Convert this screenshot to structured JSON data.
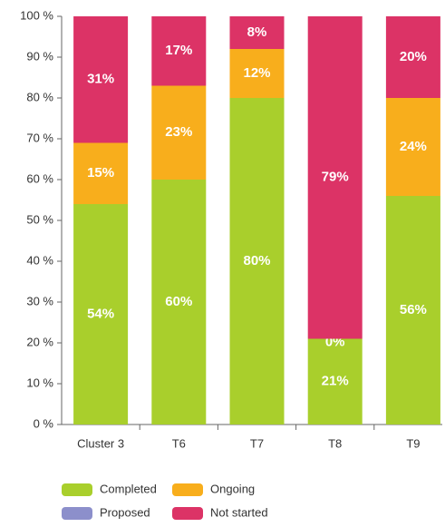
{
  "chart_data": {
    "type": "stacked_bar",
    "categories": [
      "Cluster  3",
      "T6",
      "T7",
      "T8",
      "T9"
    ],
    "series": [
      {
        "name": "Completed",
        "color": "#a9cf2c",
        "values": [
          54,
          60,
          80,
          21,
          56
        ],
        "value_labels": [
          "54%",
          "60%",
          "80%",
          "21%",
          "56%"
        ]
      },
      {
        "name": "Ongoing",
        "color": "#f8ae1c",
        "values": [
          15,
          23,
          12,
          0,
          24
        ],
        "value_labels": [
          "15%",
          "23%",
          "12%",
          "0%",
          "24%"
        ]
      },
      {
        "name": "Proposed",
        "color": "#8c8fcb",
        "values": [
          0,
          0,
          0,
          0,
          0
        ]
      },
      {
        "name": "Not started",
        "color": "#dc3366",
        "values": [
          31,
          17,
          8,
          79,
          20
        ],
        "value_labels": [
          "31%",
          "17%",
          "8%",
          "79%",
          "20%"
        ]
      }
    ],
    "ylim": [
      0,
      100
    ],
    "yticks": [
      {
        "value": 0,
        "label": "0 %"
      },
      {
        "value": 10,
        "label": "10 %"
      },
      {
        "value": 20,
        "label": "20 %"
      },
      {
        "value": 30,
        "label": "30 %"
      },
      {
        "value": 40,
        "label": "40 %"
      },
      {
        "value": 50,
        "label": "50 %"
      },
      {
        "value": 60,
        "label": "60 %"
      },
      {
        "value": 70,
        "label": "70 %"
      },
      {
        "value": 80,
        "label": "80 %"
      },
      {
        "value": 90,
        "label": "90 %"
      },
      {
        "value": 100,
        "label": "100 %"
      }
    ],
    "legend": "bottom"
  }
}
